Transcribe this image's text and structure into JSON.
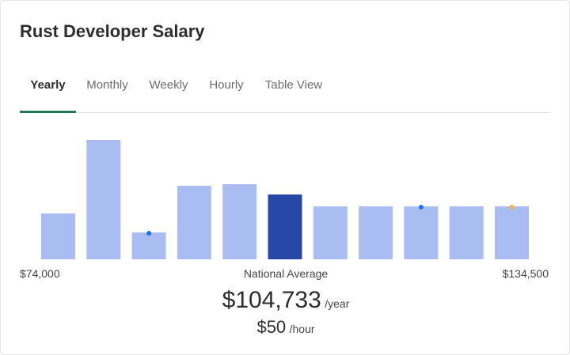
{
  "page": {
    "title": "Rust Developer Salary"
  },
  "tabs": [
    {
      "label": "Yearly",
      "active": true
    },
    {
      "label": "Monthly",
      "active": false
    },
    {
      "label": "Weekly",
      "active": false
    },
    {
      "label": "Hourly",
      "active": false
    },
    {
      "label": "Table View",
      "active": false
    }
  ],
  "chart_data": {
    "type": "bar",
    "values": [
      58,
      151,
      34,
      93,
      95,
      82,
      67,
      67,
      67,
      67,
      67
    ],
    "highlight_index": 5,
    "markers": [
      {
        "bar": 2,
        "color": "#1a73e8"
      },
      {
        "bar": 8,
        "color": "#1a73e8"
      },
      {
        "bar": 10,
        "color": "#f5b041"
      }
    ],
    "bar_color": "#a9bdf2",
    "highlight_color": "#2647a3",
    "x_min_label": "$74,000",
    "x_max_label": "$134,500",
    "center_label": "National Average"
  },
  "summary": {
    "yearly_amount": "$104,733",
    "yearly_unit": "/year",
    "hourly_amount": "$50",
    "hourly_unit": "/hour"
  }
}
